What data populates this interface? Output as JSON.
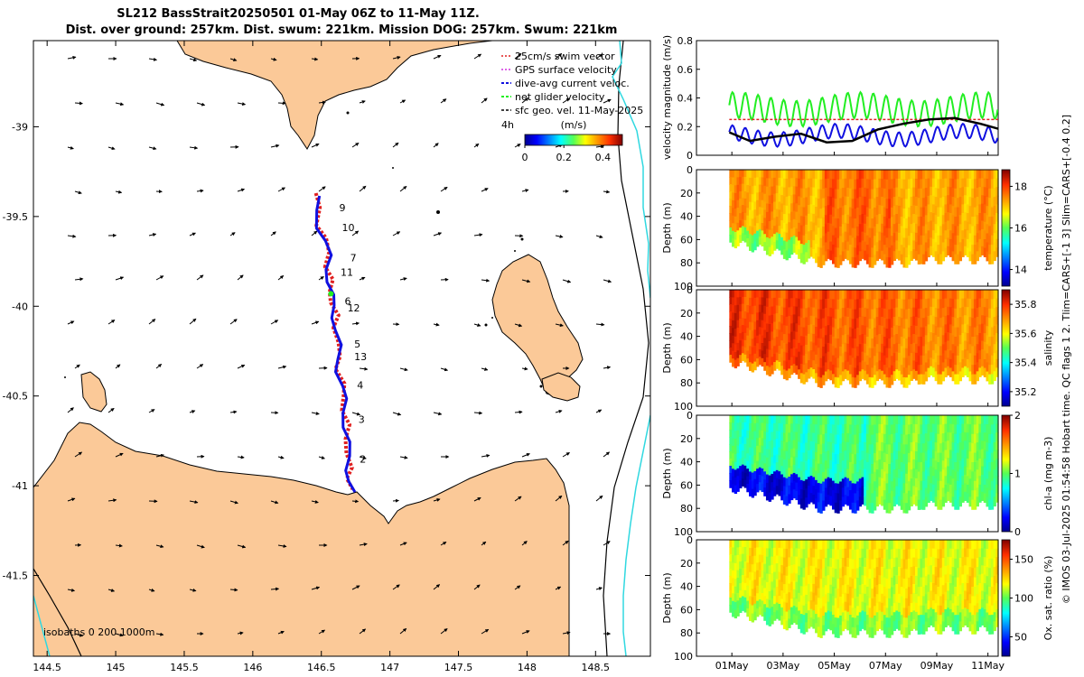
{
  "title_line1": "SL212 BassStrait20250501 01-May 06Z to 11-May 11Z.",
  "title_line2": "Dist. over ground: 257km. Dist. swum: 221km. Mission DOG: 257km. Swum: 221km",
  "side_note": "© IMOS 03-Jul-2025 01:54:58 Hobart time. QC flags 1  2. Tlim=CARS+[-1 3] Slim=CARS+[-0.4 0.2]",
  "colors": {
    "land": "#fbc998",
    "ocean": "#ffffff",
    "track_red": "#e02020",
    "track_blue": "#1010e0",
    "green": "#22ee22",
    "cyan": "#30d8e0"
  },
  "chart_data": [
    {
      "type": "map",
      "name": "glider track map",
      "lon_ticks": [
        "144.5",
        "145",
        "145.5",
        "146",
        "146.5",
        "147",
        "147.5",
        "148",
        "148.5"
      ],
      "lat_ticks": [
        "-39",
        "-39.5",
        "-40",
        "-40.5",
        "-41",
        "-41.5"
      ],
      "lon_range": [
        144.4,
        148.9
      ],
      "lat_range": [
        -41.95,
        -38.52
      ],
      "legend": [
        "25cm/s swim vector",
        "GPS surface velocity",
        "dive-avg current veloc.",
        "net glider velocity",
        "sfc geo. vel. 11-May-2025"
      ],
      "legend_note": "4h",
      "colorbar": {
        "label": "(m/s)",
        "ticks": [
          "0",
          "0.2",
          "0.4"
        ],
        "range": [
          0,
          0.5
        ]
      },
      "isobaths_label": "isobaths  0   200  1000m",
      "day_labels": [
        {
          "t": "9",
          "lon": 146.63,
          "lat": -39.47
        },
        {
          "t": "10",
          "lon": 146.65,
          "lat": -39.58
        },
        {
          "t": "7",
          "lon": 146.71,
          "lat": -39.75
        },
        {
          "t": "11",
          "lon": 146.64,
          "lat": -39.83
        },
        {
          "t": "6",
          "lon": 146.67,
          "lat": -39.99
        },
        {
          "t": "12",
          "lon": 146.69,
          "lat": -40.03
        },
        {
          "t": "5",
          "lon": 146.74,
          "lat": -40.23
        },
        {
          "t": "13",
          "lon": 146.74,
          "lat": -40.3
        },
        {
          "t": "4",
          "lon": 146.76,
          "lat": -40.46
        },
        {
          "t": "3",
          "lon": 146.77,
          "lat": -40.65
        },
        {
          "t": "2",
          "lon": 146.78,
          "lat": -40.87
        }
      ],
      "track": [
        [
          146.46,
          -39.37
        ],
        [
          146.47,
          -39.45
        ],
        [
          146.49,
          -39.55
        ],
        [
          146.52,
          -39.62
        ],
        [
          146.55,
          -39.7
        ],
        [
          146.55,
          -39.78
        ],
        [
          146.56,
          -39.85
        ],
        [
          146.57,
          -39.92
        ],
        [
          146.58,
          -39.98
        ],
        [
          146.6,
          -40.05
        ],
        [
          146.61,
          -40.12
        ],
        [
          146.62,
          -40.2
        ],
        [
          146.62,
          -40.28
        ],
        [
          146.63,
          -40.35
        ],
        [
          146.65,
          -40.43
        ],
        [
          146.66,
          -40.5
        ],
        [
          146.67,
          -40.58
        ],
        [
          146.68,
          -40.66
        ],
        [
          146.69,
          -40.74
        ],
        [
          146.69,
          -40.82
        ],
        [
          146.7,
          -40.9
        ],
        [
          146.71,
          -40.96
        ],
        [
          146.72,
          -41.02
        ]
      ]
    },
    {
      "type": "line",
      "name": "velocity magnitude",
      "ylabel": "velocity magnitude (m/s)",
      "ylim": [
        0,
        0.8
      ],
      "yticks": [
        "0",
        "0.2",
        "0.4",
        "0.6",
        "0.8"
      ],
      "x_range_days": [
        0,
        11.5
      ],
      "series": [
        {
          "name": "net glider velocity",
          "color": "#22ee22",
          "base": 0.32,
          "amp": 0.09,
          "period": 0.5
        },
        {
          "name": "dive-avg current veloc.",
          "color": "#1010e0",
          "base": 0.14,
          "amp": 0.05,
          "period": 0.5
        },
        {
          "name": "sfc geo. vel.",
          "color": "#000000",
          "points": [
            [
              0.2,
              0.16
            ],
            [
              1,
              0.1
            ],
            [
              2,
              0.13
            ],
            [
              3,
              0.15
            ],
            [
              4,
              0.09
            ],
            [
              5,
              0.1
            ],
            [
              6,
              0.18
            ],
            [
              7,
              0.22
            ],
            [
              8,
              0.25
            ],
            [
              9,
              0.26
            ],
            [
              10,
              0.22
            ],
            [
              11,
              0.17
            ]
          ]
        },
        {
          "name": "25cm/s swim",
          "color": "#e02020",
          "value": 0.25
        }
      ]
    },
    {
      "type": "heatmap",
      "name": "temperature",
      "cblabel": "temperature (°C)",
      "cbticks": [
        "14",
        "16",
        "18"
      ],
      "clim": [
        13.2,
        18.8
      ],
      "ylabel": "Depth (m)",
      "yticks": [
        "0",
        "20",
        "40",
        "60",
        "80",
        "100"
      ],
      "base_value": 17.3
    },
    {
      "type": "heatmap",
      "name": "salinity",
      "cblabel": "salinity",
      "cbticks": [
        "35.2",
        "35.4",
        "35.6",
        "35.8"
      ],
      "clim": [
        35.1,
        35.9
      ],
      "ylabel": "Depth (m)",
      "yticks": [
        "0",
        "20",
        "40",
        "60",
        "80",
        "100"
      ],
      "base_value": 35.7
    },
    {
      "type": "heatmap",
      "name": "chlorophyll",
      "cblabel": "chl-a (mg m-3)",
      "cbticks": [
        "0",
        "1",
        "2"
      ],
      "clim": [
        0,
        2
      ],
      "ylabel": "Depth (m)",
      "yticks": [
        "0",
        "20",
        "40",
        "60",
        "80",
        "100"
      ],
      "base_value": 0.9
    },
    {
      "type": "heatmap",
      "name": "oxygen",
      "cblabel": "Ox. sat. ratio (%)",
      "cbticks": [
        "50",
        "100",
        "150"
      ],
      "clim": [
        25,
        175
      ],
      "ylabel": "Depth (m)",
      "yticks": [
        "0",
        "20",
        "40",
        "60",
        "80",
        "100"
      ],
      "base_value": 118
    },
    {
      "type": "time-axis",
      "xticks": [
        "01May",
        "03May",
        "05May",
        "07May",
        "09May",
        "11May"
      ],
      "x_days": [
        0,
        2,
        4,
        6,
        8,
        10
      ]
    }
  ]
}
